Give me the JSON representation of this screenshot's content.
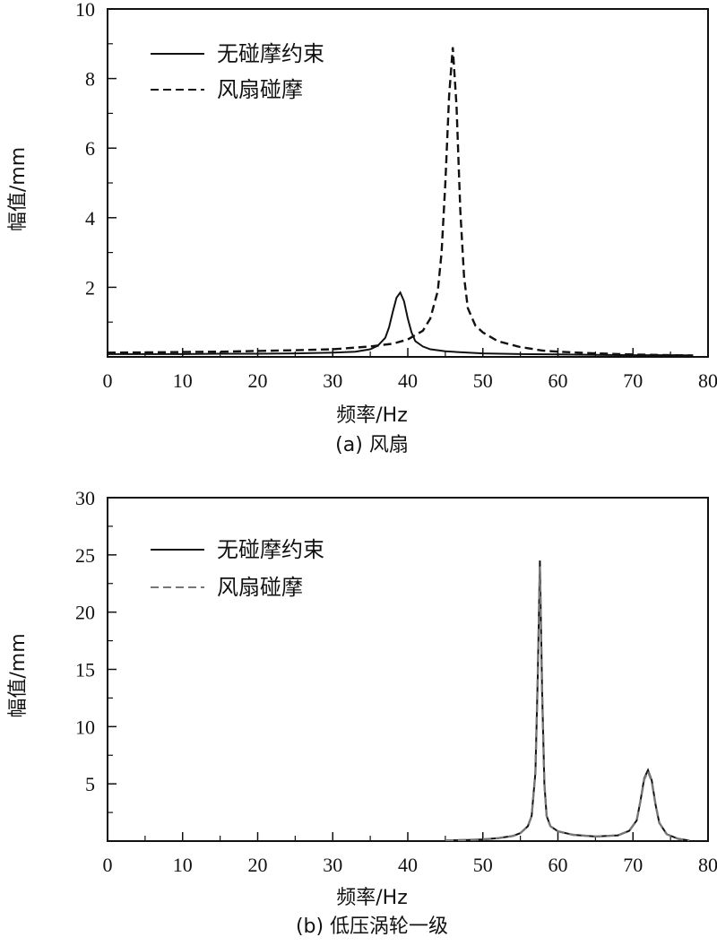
{
  "chart_data": [
    {
      "type": "line",
      "caption": "(a) 风扇",
      "xlabel": "频率/Hz",
      "ylabel": "幅值/mm",
      "xlim": [
        0,
        80
      ],
      "ylim": [
        0,
        10
      ],
      "xticks": [
        0,
        10,
        20,
        30,
        40,
        50,
        60,
        70,
        80
      ],
      "yticks": [
        2,
        4,
        6,
        8,
        10
      ],
      "ytick_labels": [
        "2",
        "4",
        "6",
        "8",
        "10"
      ],
      "xtick_labels": [
        "0",
        "10",
        "20",
        "30",
        "40",
        "50",
        "60",
        "70",
        "80"
      ],
      "legend": {
        "position": "top-left"
      },
      "series": [
        {
          "name": "无碰摩约束",
          "style": "solid",
          "color": "#111111",
          "x": [
            0,
            5,
            10,
            15,
            20,
            25,
            30,
            33,
            35,
            36,
            37,
            37.5,
            38,
            38.5,
            39,
            39.5,
            40,
            40.5,
            41,
            42,
            43,
            45,
            48,
            50,
            55,
            60,
            65,
            70,
            75,
            78
          ],
          "y": [
            0.08,
            0.08,
            0.08,
            0.09,
            0.09,
            0.1,
            0.12,
            0.15,
            0.22,
            0.32,
            0.55,
            0.85,
            1.3,
            1.7,
            1.85,
            1.6,
            1.1,
            0.7,
            0.45,
            0.3,
            0.22,
            0.16,
            0.12,
            0.1,
            0.08,
            0.07,
            0.06,
            0.05,
            0.05,
            0.04
          ]
        },
        {
          "name": "风扇碰摩",
          "style": "dashed",
          "color": "#111111",
          "x": [
            0,
            5,
            10,
            15,
            20,
            25,
            30,
            35,
            38,
            40,
            42,
            43,
            44,
            44.5,
            45,
            45.5,
            46,
            46.5,
            47,
            47.5,
            48,
            49,
            50,
            52,
            55,
            58,
            60,
            65,
            70,
            75,
            78
          ],
          "y": [
            0.12,
            0.13,
            0.14,
            0.15,
            0.17,
            0.19,
            0.22,
            0.3,
            0.38,
            0.5,
            0.75,
            1.1,
            1.9,
            3.0,
            5.0,
            7.5,
            8.9,
            7.2,
            4.2,
            2.3,
            1.4,
            0.9,
            0.7,
            0.45,
            0.28,
            0.18,
            0.15,
            0.1,
            0.07,
            0.05,
            0.04
          ]
        }
      ]
    },
    {
      "type": "line",
      "caption": "(b) 低压涡轮一级",
      "xlabel": "频率/Hz",
      "ylabel": "幅值/mm",
      "xlim": [
        0,
        80
      ],
      "ylim": [
        0,
        30
      ],
      "xticks": [
        0,
        10,
        20,
        30,
        40,
        50,
        60,
        70,
        80
      ],
      "yticks": [
        5,
        10,
        15,
        20,
        25,
        30
      ],
      "ytick_labels": [
        "5",
        "10",
        "15",
        "20",
        "25",
        "30"
      ],
      "xtick_labels": [
        "0",
        "10",
        "20",
        "30",
        "40",
        "50",
        "60",
        "70",
        "80"
      ],
      "legend": {
        "position": "top-left"
      },
      "series": [
        {
          "name": "无碰摩约束",
          "style": "solid",
          "color": "#111111",
          "x": [
            45,
            48,
            50,
            52,
            54,
            55,
            56,
            56.5,
            57,
            57.3,
            57.6,
            57.9,
            58.2,
            58.5,
            59,
            60,
            62,
            65,
            68,
            69.5,
            70.5,
            71,
            71.5,
            72,
            72.5,
            73,
            73.5,
            74.5,
            76,
            77.5
          ],
          "y": [
            0.05,
            0.1,
            0.15,
            0.25,
            0.45,
            0.7,
            1.3,
            2.2,
            6.0,
            14.0,
            24.5,
            13.0,
            5.0,
            2.2,
            1.3,
            0.85,
            0.55,
            0.4,
            0.5,
            0.9,
            1.8,
            3.5,
            5.5,
            6.2,
            5.3,
            3.2,
            1.6,
            0.6,
            0.2,
            0.05
          ]
        },
        {
          "name": "风扇碰摩",
          "style": "dashed",
          "color": "#777777",
          "x": [
            45,
            48,
            50,
            52,
            54,
            55,
            56,
            56.5,
            57,
            57.3,
            57.6,
            57.9,
            58.2,
            58.5,
            59,
            60,
            62,
            65,
            68,
            69.5,
            70.5,
            71,
            71.5,
            72,
            72.5,
            73,
            73.5,
            74.5,
            76,
            77.5
          ],
          "y": [
            0.05,
            0.1,
            0.15,
            0.25,
            0.45,
            0.7,
            1.3,
            2.2,
            6.0,
            14.0,
            24.0,
            13.0,
            5.0,
            2.2,
            1.3,
            0.85,
            0.55,
            0.4,
            0.5,
            0.9,
            1.8,
            3.5,
            5.4,
            6.1,
            5.2,
            3.2,
            1.6,
            0.6,
            0.2,
            0.05
          ]
        }
      ]
    }
  ]
}
